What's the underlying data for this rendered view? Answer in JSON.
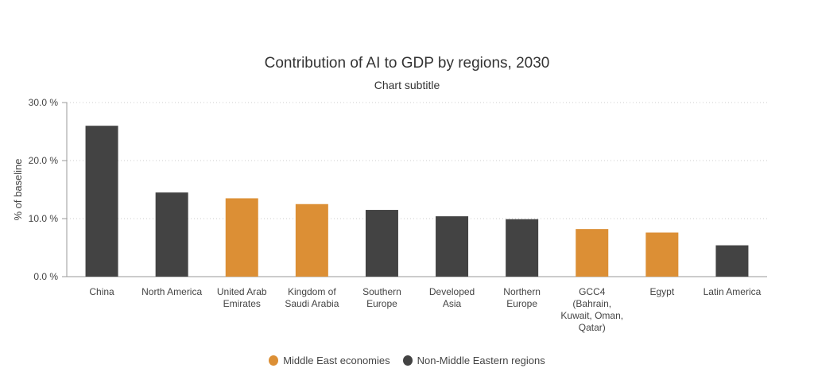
{
  "chart_data": {
    "type": "bar",
    "title": "Contribution of AI to GDP by regions, 2030",
    "subtitle": "Chart subtitle",
    "xlabel": "",
    "ylabel": "% of baseline",
    "ylim": [
      0,
      30
    ],
    "yticks": [
      "0.0 %",
      "10.0 %",
      "20.0 %",
      "30.0 %"
    ],
    "ytick_values": [
      0,
      10,
      20,
      30
    ],
    "grid": true,
    "legend_position": "bottom-center",
    "categories": [
      [
        "China"
      ],
      [
        "North America"
      ],
      [
        "United Arab",
        "Emirates"
      ],
      [
        "Kingdom of",
        "Saudi Arabia"
      ],
      [
        "Southern",
        "Europe"
      ],
      [
        "Developed",
        "Asia"
      ],
      [
        "Northern",
        "Europe"
      ],
      [
        "GCC4",
        "(Bahrain,",
        "Kuwait, Oman,",
        "Qatar)"
      ],
      [
        "Egypt"
      ],
      [
        "Latin America"
      ]
    ],
    "values": [
      26.0,
      14.5,
      13.5,
      12.5,
      11.5,
      10.4,
      9.9,
      8.2,
      7.6,
      5.4
    ],
    "groups": [
      1,
      1,
      0,
      0,
      1,
      1,
      1,
      0,
      0,
      1
    ],
    "series": [
      {
        "name": "Middle East economies",
        "color": "#dc8f35"
      },
      {
        "name": "Non-Middle Eastern regions",
        "color": "#434343"
      }
    ]
  }
}
